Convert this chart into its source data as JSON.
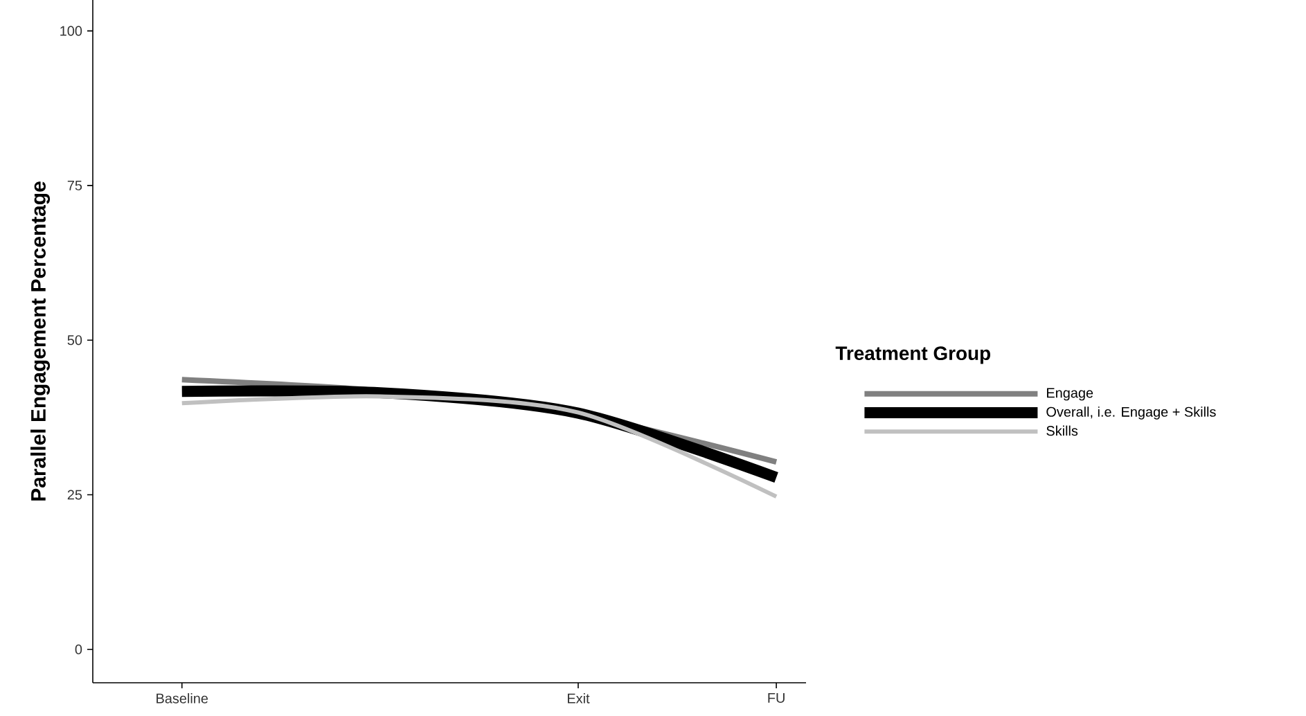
{
  "chart_data": {
    "type": "line",
    "ylabel": "Parallel Engagement Percentage",
    "legend_title": "Treatment Group",
    "categories": [
      "Baseline",
      null,
      "Exit",
      "FU"
    ],
    "ylim": [
      -5.4,
      105
    ],
    "yticks": [
      0,
      25,
      50,
      75,
      100
    ],
    "grid": false,
    "legend": "right",
    "marker": "none",
    "line_style": "solid",
    "series": [
      {
        "name": "Engage",
        "color": "#808080",
        "values": [
          43.6,
          41.8,
          38.0,
          30.3
        ]
      },
      {
        "name": "Overall, i.e. Engage + Skills",
        "color": "#000000",
        "values": [
          41.7,
          41.5,
          38.2,
          27.8
        ]
      },
      {
        "name": "Skills",
        "color": "#c0c0c0",
        "values": [
          39.8,
          40.9,
          38.3,
          24.7
        ]
      }
    ]
  }
}
